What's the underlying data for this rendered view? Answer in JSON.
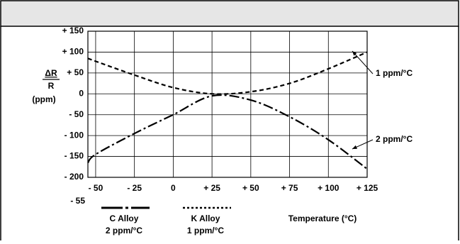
{
  "chart_data": {
    "type": "line",
    "x_label": "Temperature (°C)",
    "y_label": {
      "numerator": "ΔR",
      "denominator": "R",
      "unit": "(ppm)"
    },
    "x": [
      -55,
      -50,
      -25,
      0,
      25,
      50,
      75,
      100,
      125
    ],
    "series": [
      {
        "name": "C Alloy",
        "rate": "2 ppm/°C",
        "color": "#000000",
        "dash": "dashdot",
        "values": [
          -165,
          -145,
          -95,
          -50,
          -5,
          -15,
          -55,
          -110,
          -180
        ]
      },
      {
        "name": "K Alloy",
        "rate": "1 ppm/°C",
        "color": "#000000",
        "dash": "dashed",
        "values": [
          85,
          78,
          45,
          15,
          0,
          5,
          25,
          60,
          100
        ]
      }
    ],
    "annotations": [
      {
        "text": "1 ppm/°C",
        "series": 1
      },
      {
        "text": "2 ppm/°C",
        "series": 0
      }
    ],
    "xlim": [
      -55,
      125
    ],
    "xticks": [
      {
        "value": -55,
        "label": "- 55"
      },
      {
        "value": -50,
        "label": "- 50"
      },
      {
        "value": -25,
        "label": "- 25"
      },
      0,
      {
        "value": 25,
        "label": "+ 25"
      },
      {
        "value": 50,
        "label": "+ 50"
      },
      {
        "value": 75,
        "label": "+ 75"
      },
      {
        "value": 100,
        "label": "+ 100"
      },
      {
        "value": 125,
        "label": "+ 125"
      }
    ],
    "ylim": [
      -200,
      150
    ],
    "yticks": [
      {
        "value": -200,
        "label": "- 200"
      },
      {
        "value": -150,
        "label": "- 150"
      },
      {
        "value": -100,
        "label": "- 100"
      },
      {
        "value": -50,
        "label": "- 50"
      },
      0,
      {
        "value": 50,
        "label": "+ 50"
      },
      {
        "value": 100,
        "label": "+ 100"
      },
      {
        "value": 150,
        "label": "+ 150"
      }
    ],
    "grid": true
  }
}
